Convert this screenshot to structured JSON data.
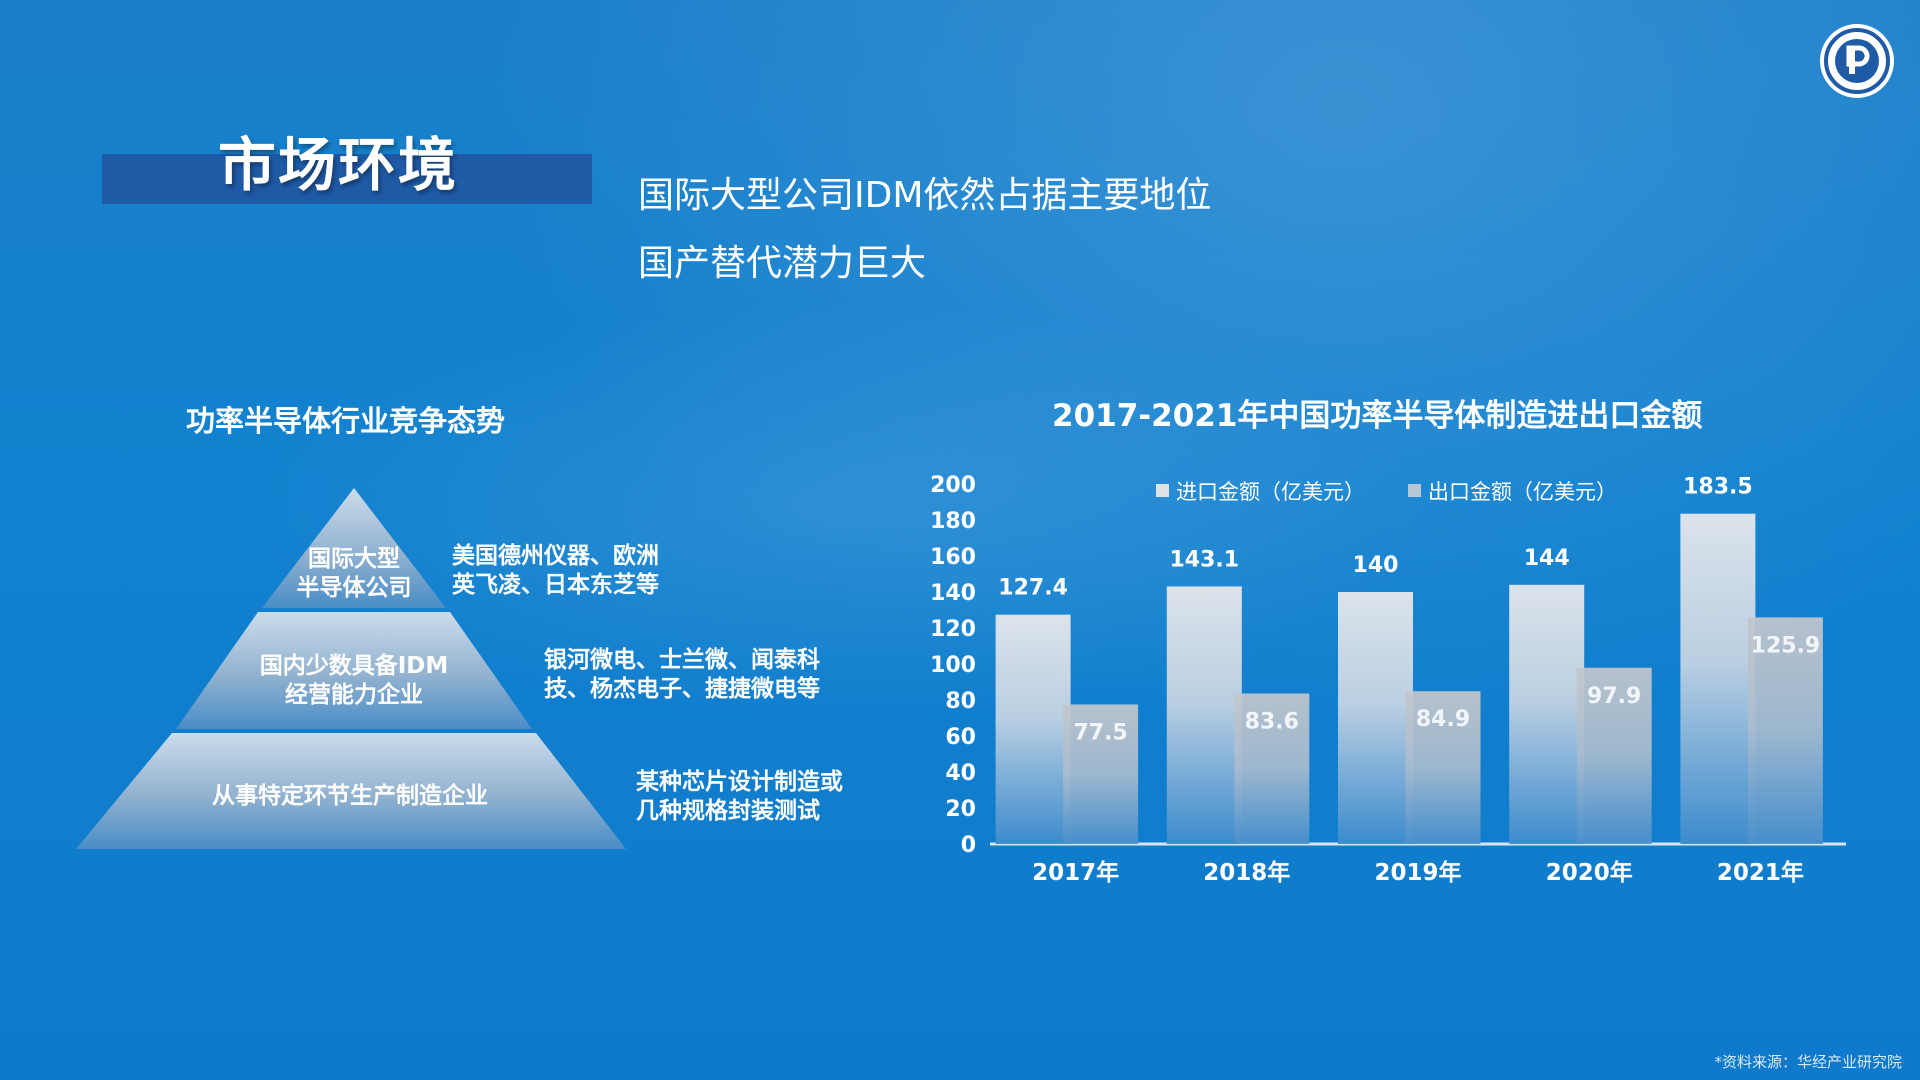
{
  "page": {
    "title": "市场环境",
    "subtitle_lines": [
      "国际大型公司IDM依然占据主要地位",
      "国产替代潜力巨大"
    ],
    "source": "*资料来源：华经产业研究院"
  },
  "pyramid": {
    "title": "功率半导体行业竞争态势",
    "tiers": [
      {
        "label_lines": [
          "国际大型",
          "半导体公司"
        ],
        "desc_lines": [
          "美国德州仪器、欧洲",
          "英飞凌、日本东芝等"
        ]
      },
      {
        "label_lines": [
          "国内少数具备IDM",
          "经营能力企业"
        ],
        "desc_lines": [
          "银河微电、士兰微、闻泰科",
          "技、杨杰电子、捷捷微电等"
        ]
      },
      {
        "label_lines": [
          "从事特定环节生产制造企业"
        ],
        "desc_lines": [
          "某种芯片设计制造或",
          "几种规格封装测试"
        ]
      }
    ]
  },
  "chart_data": {
    "type": "bar",
    "title": "2017-2021年中国功率半导体制造进出口金额",
    "categories": [
      "2017年",
      "2018年",
      "2019年",
      "2020年",
      "2021年"
    ],
    "series": [
      {
        "name": "进口金额（亿美元）",
        "values": [
          127.4,
          143.1,
          140,
          144,
          183.5
        ]
      },
      {
        "name": "出口金额（亿美元）",
        "values": [
          77.5,
          83.6,
          84.9,
          97.9,
          125.9
        ]
      }
    ],
    "yticks": [
      0,
      20,
      40,
      60,
      80,
      100,
      120,
      140,
      160,
      180,
      200
    ],
    "ylim": [
      0,
      200
    ],
    "legend": "top",
    "grid": false
  }
}
